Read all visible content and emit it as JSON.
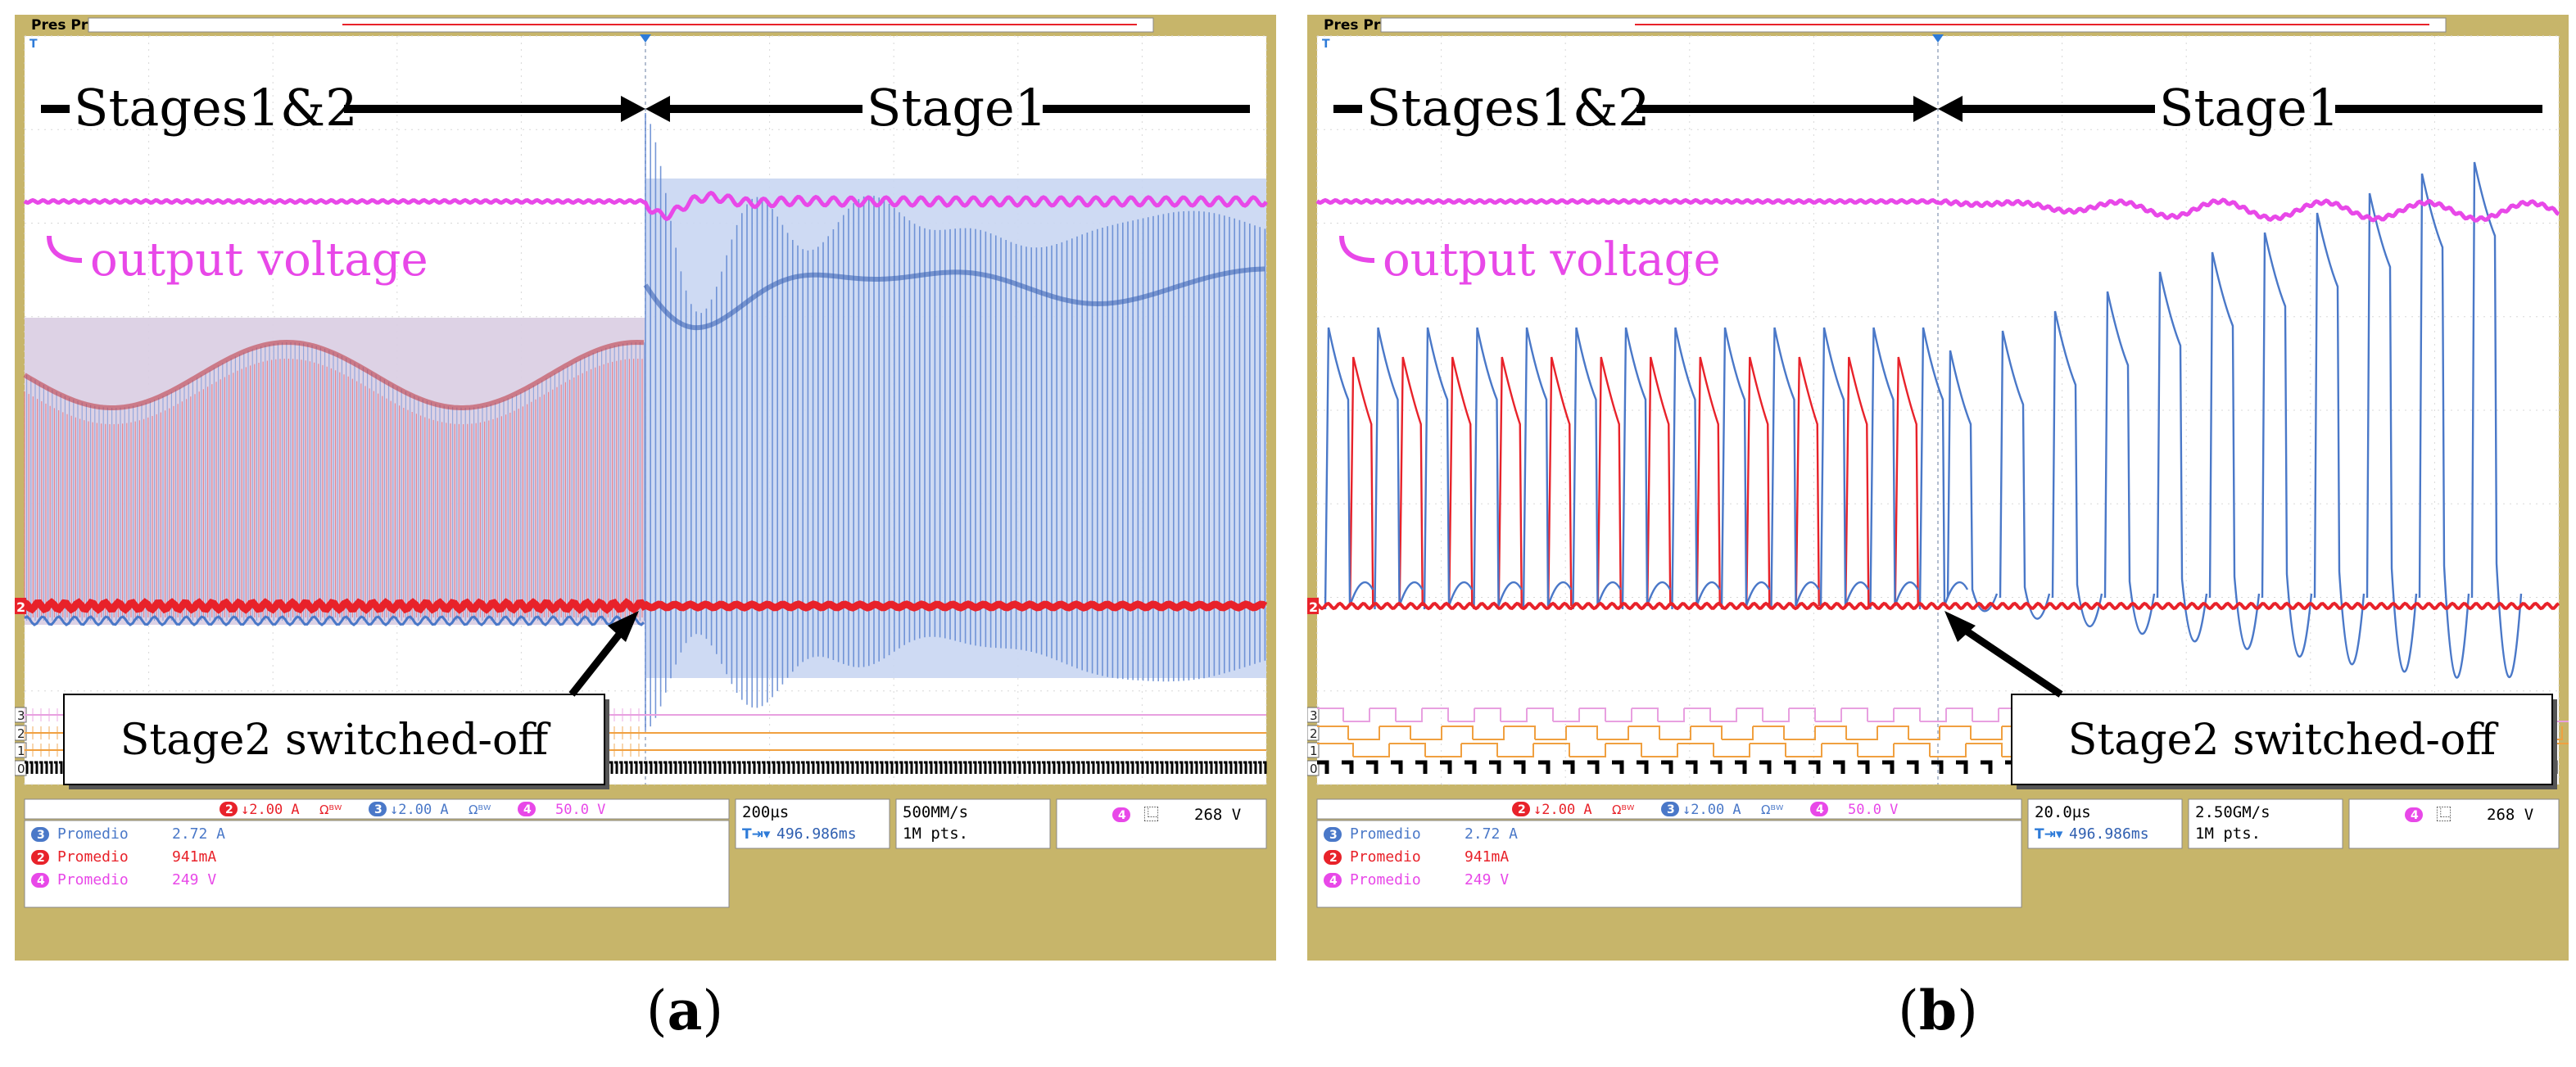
{
  "panels": [
    {
      "id": "a",
      "label_open": "(",
      "label_letter": "a",
      "label_close": ")",
      "header_text": "Pres Pr",
      "stage_left": "Stages1&2",
      "stage_right": "Stage1",
      "output_voltage_label": "output voltage",
      "callout": "Stage2 switched-off",
      "ch2_marker": "2",
      "digital_channels": [
        "3",
        "2",
        "1",
        "0"
      ],
      "scale_ch2": "↓2.00 A",
      "scale_ch3": "↓2.00 A",
      "scale_ch4": "50.0 V",
      "ch2_badge": "2",
      "ch3_badge": "3",
      "ch4_badge": "4",
      "bw_symbol": "Ωᴮᵂ",
      "timebase": "200µs",
      "trigger_pos": "496.986ms",
      "sample_rate": "500MM/s",
      "record_length": "1M pts.",
      "trigger_badge": "4",
      "trigger_level": "268 V",
      "measurements": [
        {
          "badge": "3",
          "name": "Promedio",
          "value": "2.72 A",
          "color": "#4a78c8"
        },
        {
          "badge": "2",
          "name": "Promedio",
          "value": "941mA",
          "color": "#e8222a"
        },
        {
          "badge": "4",
          "name": "Promedio",
          "value": "249 V",
          "color": "#e848e8"
        }
      ]
    },
    {
      "id": "b",
      "label_open": "(",
      "label_letter": "b",
      "label_close": ")",
      "header_text": "Pres Pr",
      "stage_left": "Stages1&2",
      "stage_right": "Stage1",
      "output_voltage_label": "output voltage",
      "callout": "Stage2 switched-off",
      "ch2_marker": "2",
      "digital_channels": [
        "3",
        "2",
        "1",
        "0"
      ],
      "scale_ch2": "↓2.00 A",
      "scale_ch3": "↓2.00 A",
      "scale_ch4": "50.0 V",
      "ch2_badge": "2",
      "ch3_badge": "3",
      "ch4_badge": "4",
      "bw_symbol": "Ωᴮᵂ",
      "timebase": "20.0µs",
      "trigger_pos": "496.986ms",
      "sample_rate": "2.50GM/s",
      "record_length": "1M pts.",
      "trigger_badge": "4",
      "trigger_level": "268 V",
      "measurements": [
        {
          "badge": "3",
          "name": "Promedio",
          "value": "2.72 A",
          "color": "#4a78c8"
        },
        {
          "badge": "2",
          "name": "Promedio",
          "value": "941mA",
          "color": "#e8222a"
        },
        {
          "badge": "4",
          "name": "Promedio",
          "value": "249 V",
          "color": "#e848e8"
        }
      ]
    }
  ],
  "chart_data": [
    {
      "type": "line",
      "panel": "a",
      "title": "",
      "xlabel": "",
      "ylabel": "",
      "timebase_per_div": "200µs",
      "series": [
        {
          "name": "output voltage",
          "channel": "4",
          "color": "#e848e8",
          "avg": "249 V"
        },
        {
          "channel": "2",
          "color": "#e8222a",
          "avg": "941mA"
        },
        {
          "channel": "3",
          "color": "#4a78c8",
          "avg": "2.72 A"
        }
      ],
      "grid": true
    },
    {
      "type": "line",
      "panel": "b",
      "title": "",
      "xlabel": "",
      "ylabel": "",
      "timebase_per_div": "20.0µs",
      "series": [
        {
          "name": "output voltage",
          "channel": "4",
          "color": "#e848e8",
          "avg": "249 V"
        },
        {
          "channel": "2",
          "color": "#e8222a",
          "avg": "941mA"
        },
        {
          "channel": "3",
          "color": "#4a78c8",
          "avg": "2.72 A"
        }
      ],
      "grid": true
    }
  ],
  "colors": {
    "bezel": "#c7b56a",
    "screen": "#ffffff",
    "voltage": "#e848e8",
    "ch2": "#e8222a",
    "ch3": "#4a78c8",
    "digital_pink": "#e8a0e0",
    "digital_orange": "#f0a040"
  }
}
